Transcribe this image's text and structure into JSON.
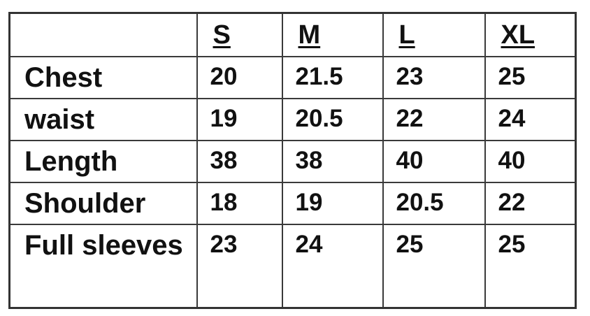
{
  "columns": [
    "",
    "S",
    "M",
    "L",
    "XL"
  ],
  "rows": [
    {
      "label": "Chest",
      "values": [
        "20",
        "21.5",
        "23",
        "25"
      ]
    },
    {
      "label": "waist",
      "values": [
        "19",
        "20.5",
        "22",
        "24"
      ]
    },
    {
      "label": "Length",
      "values": [
        "38",
        "38",
        "40",
        "40"
      ]
    },
    {
      "label": "Shoulder",
      "values": [
        "18",
        "19",
        "20.5",
        "22"
      ]
    },
    {
      "label": "Full sleeves",
      "values": [
        "23",
        "24",
        "25",
        "25"
      ]
    }
  ]
}
